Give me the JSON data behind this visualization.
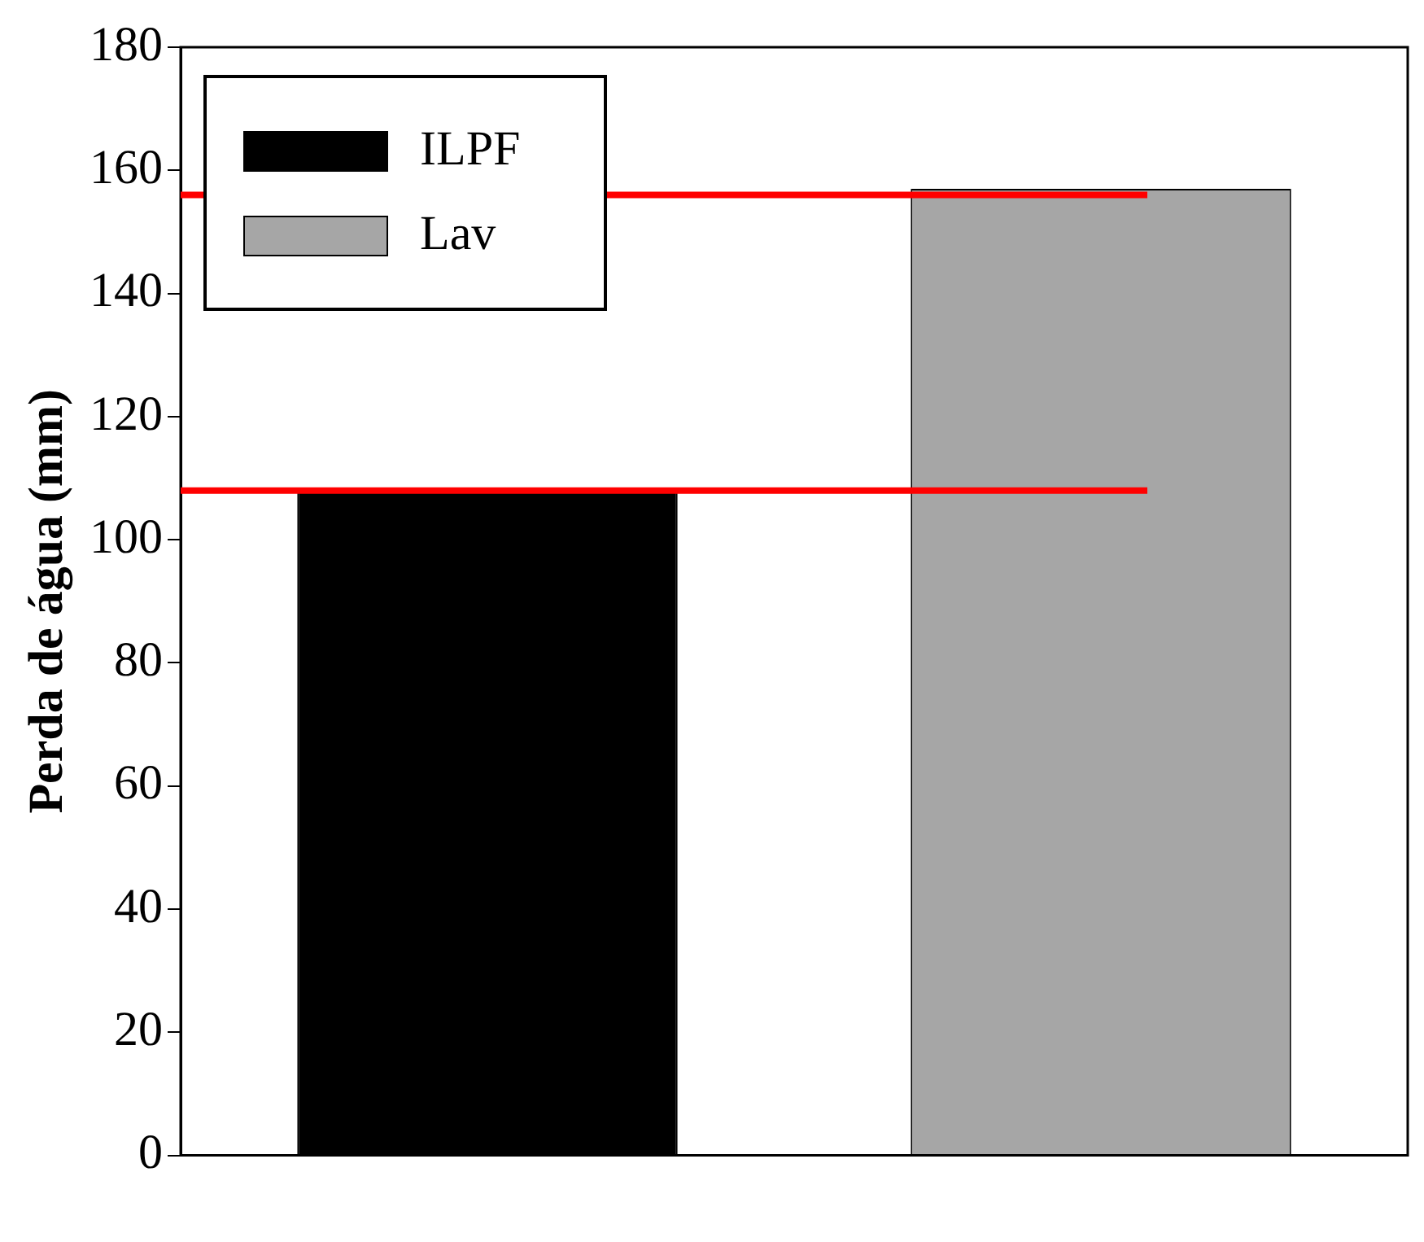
{
  "chart_data": {
    "type": "bar",
    "ylabel": "Perda de água (mm)",
    "categories": [
      null
    ],
    "series": [
      {
        "name": "ILPF",
        "color": "#000000",
        "values": [
          108
        ]
      },
      {
        "name": "Lav",
        "color": "#a6a6a6",
        "values": [
          157
        ]
      }
    ],
    "ylim": [
      0,
      180
    ],
    "yticks": [
      0,
      20,
      40,
      60,
      80,
      100,
      120,
      140,
      160,
      180
    ],
    "grid": false,
    "legend": "top left",
    "ref_lines": [
      {
        "axis": "y",
        "value": 108,
        "color": "#ff0000"
      },
      {
        "axis": "y",
        "value": 156,
        "color": "#ff0000"
      }
    ]
  }
}
